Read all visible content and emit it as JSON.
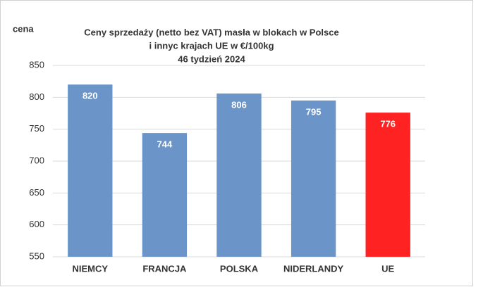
{
  "chart_data": {
    "type": "bar",
    "title": [
      "Ceny sprzedaży (netto bez VAT) masła w blokach w Polsce",
      "i  innyc krajach UE w €/100kg",
      "46 tydzień 2024"
    ],
    "y_label": "cena",
    "categories": [
      "NIEMCY",
      "FRANCJA",
      "POLSKA",
      "NIDERLANDY",
      "UE"
    ],
    "values": [
      820,
      744,
      806,
      795,
      776
    ],
    "colors": [
      "#6b95c9",
      "#6b95c9",
      "#6b95c9",
      "#6b95c9",
      "#ff2222"
    ],
    "ylim": [
      550,
      850
    ],
    "yticks": [
      550,
      600,
      650,
      700,
      750,
      800,
      850
    ],
    "grid": true
  }
}
